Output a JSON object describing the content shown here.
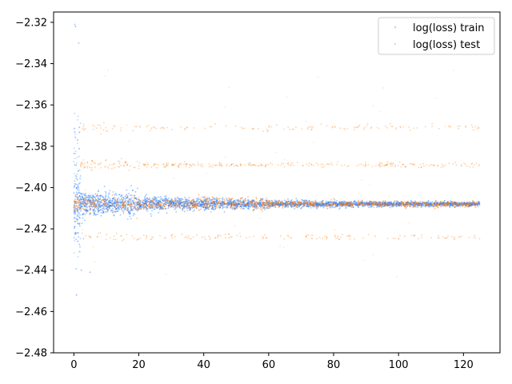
{
  "chart_data": {
    "type": "scatter",
    "title": "",
    "xlabel": "",
    "ylabel": "",
    "xlim": [
      -6.25,
      131.25
    ],
    "ylim": [
      -2.48,
      -2.315
    ],
    "grid": false,
    "legend_placement": "top-right",
    "x_ticks": [
      0,
      20,
      40,
      60,
      80,
      100,
      120
    ],
    "x_tick_labels": [
      "0",
      "20",
      "40",
      "60",
      "80",
      "100",
      "120"
    ],
    "y_ticks": [
      -2.48,
      -2.46,
      -2.44,
      -2.42,
      -2.4,
      -2.38,
      -2.36,
      -2.34,
      -2.32
    ],
    "y_tick_labels": [
      "−2.48",
      "−2.46",
      "−2.44",
      "−2.42",
      "−2.40",
      "−2.38",
      "−2.36",
      "−2.34",
      "−2.32"
    ],
    "series": [
      {
        "name": "log(loss) train",
        "color": "#1f77ff",
        "description_points": {
          "x_range": [
            0,
            125
          ],
          "center": -2.408,
          "bands": [
            {
              "x": [
                0,
                2
              ],
              "y_min": -2.425,
              "y_max": -2.392
            },
            {
              "x": [
                2,
                20
              ],
              "y_min": -2.413,
              "y_max": -2.403
            },
            {
              "x": [
                20,
                60
              ],
              "y_min": -2.411,
              "y_max": -2.405
            },
            {
              "x": [
                60,
                125
              ],
              "y_min": -2.409,
              "y_max": -2.407
            }
          ],
          "outliers": [
            [
              0.3,
              -2.321
            ],
            [
              0.5,
              -2.322
            ],
            [
              0.8,
              -2.452
            ],
            [
              1.5,
              -2.33
            ],
            [
              1.2,
              -2.426
            ],
            [
              2.3,
              -2.44
            ],
            [
              5.0,
              -2.441
            ]
          ]
        }
      },
      {
        "name": "log(loss) test",
        "color": "#ff7f0e",
        "description_points": {
          "x_range": [
            0,
            125
          ],
          "center": -2.408,
          "side_bands": [
            -2.371,
            -2.389,
            -2.424
          ]
        }
      }
    ]
  }
}
